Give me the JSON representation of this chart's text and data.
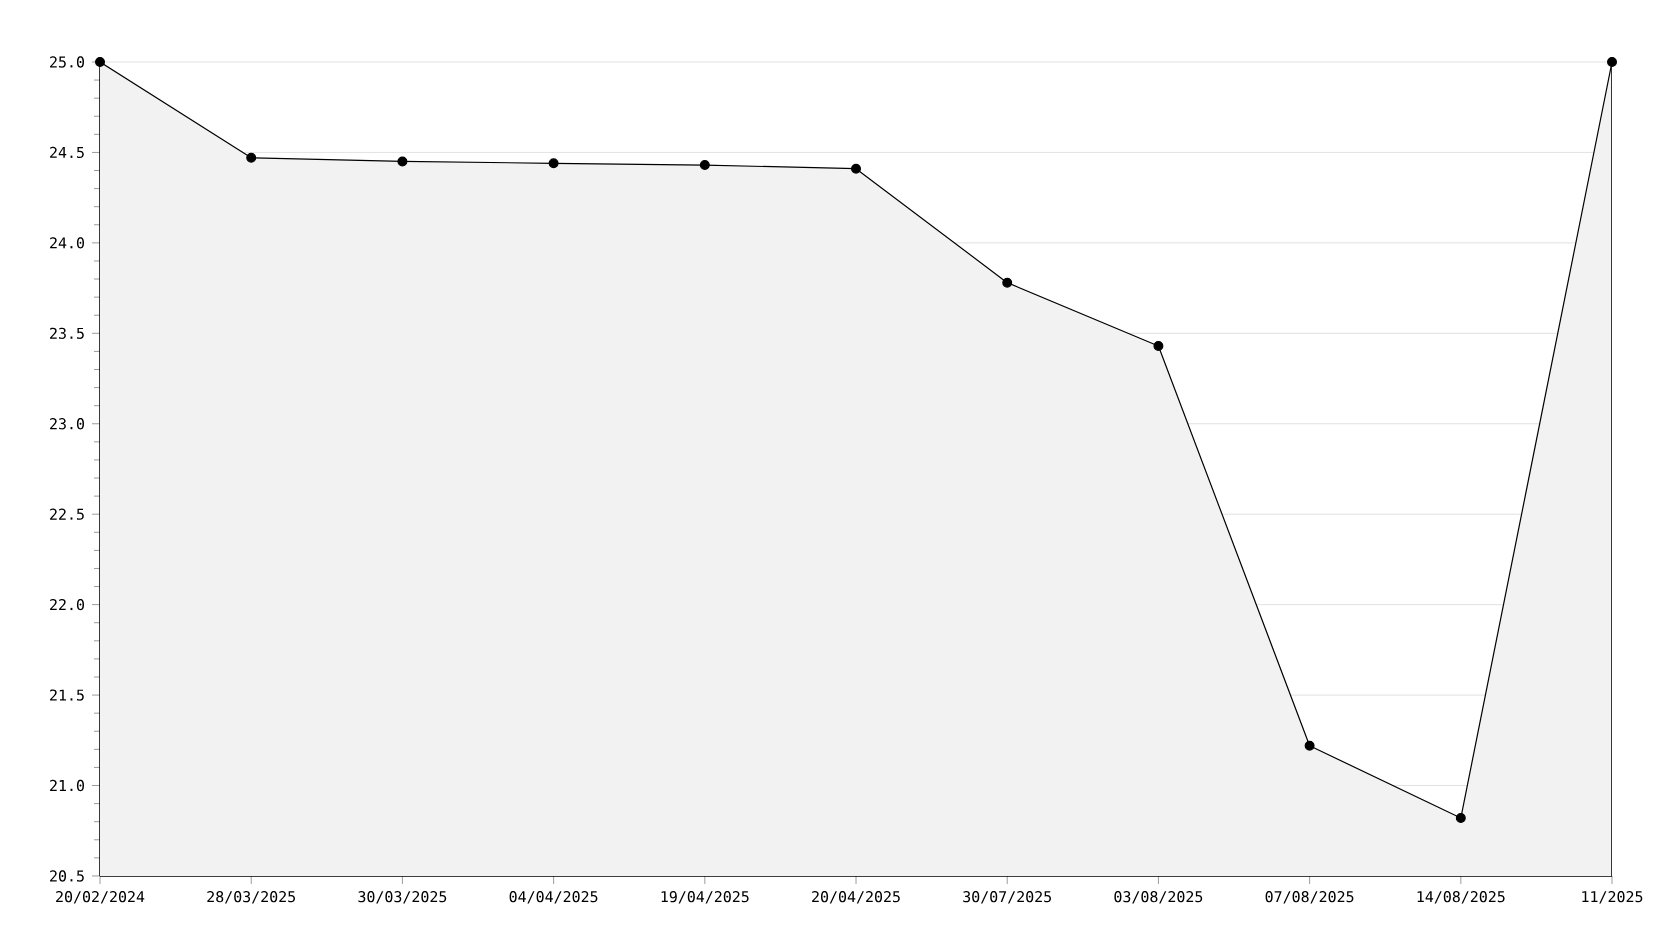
{
  "chart_data": {
    "type": "area",
    "categories": [
      "20/02/2024",
      "28/03/2025",
      "30/03/2025",
      "04/04/2025",
      "19/04/2025",
      "20/04/2025",
      "30/07/2025",
      "03/08/2025",
      "07/08/2025",
      "14/08/2025",
      "11/2025"
    ],
    "series": [
      {
        "color": "#000000",
        "values": [
          25.0,
          24.47,
          24.45,
          24.44,
          24.43,
          24.41,
          23.78,
          23.43,
          21.22,
          20.82,
          25.0
        ]
      }
    ],
    "ylim": [
      20.5,
      25.0
    ],
    "yticks": [
      20.5,
      {
        "value": 21,
        "label": "21.0"
      },
      21.5,
      {
        "value": 22,
        "label": "22.0"
      },
      22.5,
      {
        "value": 23,
        "label": "23.0"
      },
      23.5,
      {
        "value": 24,
        "label": "24.0"
      },
      24.5,
      {
        "value": 25,
        "label": "25.0"
      }
    ],
    "grid": "y",
    "marker": "circle",
    "line_style": "solid"
  }
}
